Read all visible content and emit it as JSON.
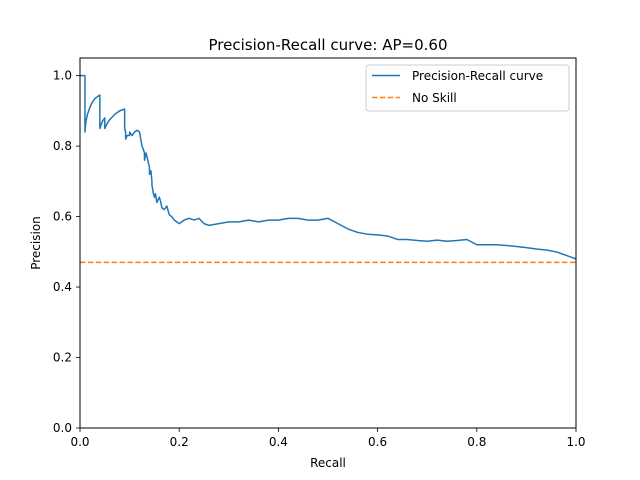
{
  "chart_data": {
    "type": "line",
    "title": "Precision-Recall curve: AP=0.60",
    "xlabel": "Recall",
    "ylabel": "Precision",
    "xlim": [
      0.0,
      1.0
    ],
    "ylim": [
      0.0,
      1.05
    ],
    "xticks": [
      "0.0",
      "0.2",
      "0.4",
      "0.6",
      "0.8",
      "1.0"
    ],
    "yticks": [
      "0.0",
      "0.2",
      "0.4",
      "0.6",
      "0.8",
      "1.0"
    ],
    "grid": false,
    "legend_position": "top-right",
    "series": [
      {
        "name": "Precision-Recall curve",
        "color": "#1f77b4",
        "style": "solid",
        "x": [
          0.0,
          0.01,
          0.01,
          0.012,
          0.015,
          0.02,
          0.025,
          0.03,
          0.035,
          0.04,
          0.04,
          0.045,
          0.05,
          0.05,
          0.055,
          0.06,
          0.07,
          0.08,
          0.09,
          0.09,
          0.092,
          0.092,
          0.095,
          0.1,
          0.1,
          0.105,
          0.11,
          0.115,
          0.12,
          0.125,
          0.128,
          0.13,
          0.13,
          0.133,
          0.135,
          0.14,
          0.14,
          0.143,
          0.145,
          0.145,
          0.148,
          0.15,
          0.152,
          0.155,
          0.16,
          0.163,
          0.165,
          0.17,
          0.175,
          0.18,
          0.185,
          0.19,
          0.195,
          0.2,
          0.21,
          0.22,
          0.23,
          0.24,
          0.25,
          0.26,
          0.28,
          0.3,
          0.32,
          0.34,
          0.36,
          0.38,
          0.4,
          0.42,
          0.44,
          0.46,
          0.48,
          0.5,
          0.52,
          0.54,
          0.56,
          0.58,
          0.6,
          0.62,
          0.64,
          0.66,
          0.68,
          0.7,
          0.72,
          0.74,
          0.76,
          0.78,
          0.8,
          0.82,
          0.84,
          0.86,
          0.88,
          0.9,
          0.92,
          0.94,
          0.96,
          0.98,
          1.0
        ],
        "y": [
          1.0,
          1.0,
          0.84,
          0.87,
          0.89,
          0.91,
          0.925,
          0.935,
          0.94,
          0.945,
          0.85,
          0.87,
          0.88,
          0.85,
          0.865,
          0.875,
          0.89,
          0.9,
          0.905,
          0.85,
          0.84,
          0.82,
          0.83,
          0.83,
          0.84,
          0.83,
          0.84,
          0.845,
          0.84,
          0.8,
          0.79,
          0.78,
          0.76,
          0.78,
          0.77,
          0.74,
          0.72,
          0.73,
          0.7,
          0.69,
          0.665,
          0.655,
          0.665,
          0.64,
          0.655,
          0.64,
          0.625,
          0.62,
          0.63,
          0.605,
          0.6,
          0.59,
          0.585,
          0.58,
          0.59,
          0.595,
          0.59,
          0.595,
          0.58,
          0.575,
          0.58,
          0.585,
          0.585,
          0.59,
          0.585,
          0.59,
          0.59,
          0.595,
          0.595,
          0.59,
          0.59,
          0.595,
          0.58,
          0.565,
          0.555,
          0.55,
          0.548,
          0.545,
          0.535,
          0.535,
          0.532,
          0.53,
          0.533,
          0.53,
          0.532,
          0.535,
          0.52,
          0.52,
          0.52,
          0.518,
          0.515,
          0.512,
          0.508,
          0.505,
          0.5,
          0.49,
          0.48
        ]
      },
      {
        "name": "No Skill",
        "color": "#ff7f0e",
        "style": "dashed",
        "x": [
          0.0,
          1.0
        ],
        "y": [
          0.47,
          0.47
        ]
      }
    ]
  }
}
